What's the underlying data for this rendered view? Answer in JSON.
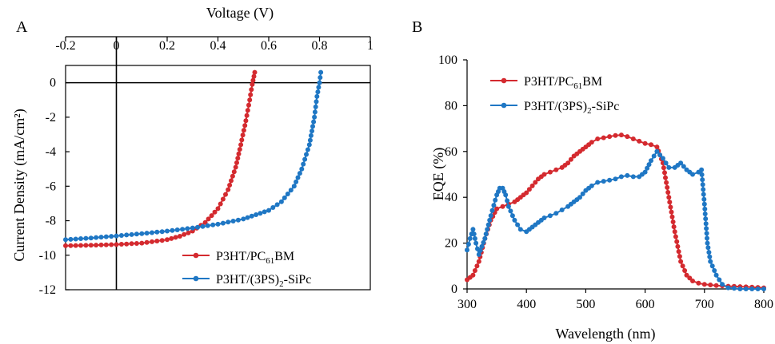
{
  "chart_data": [
    {
      "panel": "A",
      "type": "line",
      "title": "",
      "xlabel": "Voltage (V)",
      "ylabel": "Current Density (mA/cm²)",
      "xlim": [
        -0.2,
        1.0
      ],
      "ylim": [
        -12,
        1
      ],
      "xticks": [
        "-0.2",
        "0",
        "0.2",
        "0.4",
        "0.6",
        "0.8",
        "1"
      ],
      "yticks": [
        "0",
        "-2",
        "-4",
        "-6",
        "-8",
        "-10",
        "-12"
      ],
      "x_axis_position": "top",
      "legend_position": "bottom-right",
      "series": [
        {
          "name": "P3HT/PC61BM",
          "legend_main": "P3HT/PC",
          "legend_sub": "61",
          "legend_tail": "BM",
          "color": "#d42a2f",
          "points": [
            [
              -0.2,
              -9.45
            ],
            [
              -0.1,
              -9.42
            ],
            [
              0.0,
              -9.38
            ],
            [
              0.1,
              -9.3
            ],
            [
              0.2,
              -9.1
            ],
            [
              0.25,
              -8.9
            ],
            [
              0.3,
              -8.6
            ],
            [
              0.35,
              -8.1
            ],
            [
              0.4,
              -7.3
            ],
            [
              0.44,
              -6.2
            ],
            [
              0.47,
              -4.9
            ],
            [
              0.49,
              -3.6
            ],
            [
              0.51,
              -2.2
            ],
            [
              0.525,
              -1.0
            ],
            [
              0.535,
              -0.1
            ],
            [
              0.545,
              0.6
            ]
          ]
        },
        {
          "name": "P3HT/(3PS)2-SiPc",
          "legend_main": "P3HT/(3PS)",
          "legend_sub": "2",
          "legend_tail": "-SiPc",
          "color": "#1f77c4",
          "points": [
            [
              -0.2,
              -9.1
            ],
            [
              -0.1,
              -9.0
            ],
            [
              0.0,
              -8.88
            ],
            [
              0.1,
              -8.75
            ],
            [
              0.2,
              -8.6
            ],
            [
              0.3,
              -8.42
            ],
            [
              0.4,
              -8.2
            ],
            [
              0.5,
              -7.9
            ],
            [
              0.6,
              -7.4
            ],
            [
              0.65,
              -6.9
            ],
            [
              0.7,
              -6.0
            ],
            [
              0.73,
              -5.0
            ],
            [
              0.76,
              -3.6
            ],
            [
              0.78,
              -2.0
            ],
            [
              0.79,
              -0.8
            ],
            [
              0.8,
              0.0
            ],
            [
              0.805,
              0.6
            ]
          ]
        }
      ]
    },
    {
      "panel": "B",
      "type": "line",
      "title": "",
      "xlabel": "Wavelength (nm)",
      "ylabel": "EQE (%)",
      "xlim": [
        300,
        800
      ],
      "ylim": [
        0,
        100
      ],
      "xticks": [
        "300",
        "400",
        "500",
        "600",
        "700",
        "800"
      ],
      "yticks": [
        "0",
        "20",
        "40",
        "60",
        "80",
        "100"
      ],
      "legend_position": "top-left",
      "series": [
        {
          "name": "P3HT/PC61BM",
          "legend_main": "P3HT/PC",
          "legend_sub": "61",
          "legend_tail": "BM",
          "color": "#d42a2f",
          "points": [
            [
              300,
              4
            ],
            [
              310,
              6
            ],
            [
              320,
              12
            ],
            [
              330,
              22
            ],
            [
              340,
              30
            ],
            [
              350,
              35
            ],
            [
              360,
              36
            ],
            [
              370,
              37
            ],
            [
              380,
              38
            ],
            [
              390,
              40
            ],
            [
              400,
              42
            ],
            [
              410,
              45
            ],
            [
              420,
              48
            ],
            [
              430,
              50
            ],
            [
              440,
              51
            ],
            [
              450,
              52
            ],
            [
              460,
              53
            ],
            [
              470,
              55
            ],
            [
              480,
              58
            ],
            [
              490,
              60
            ],
            [
              500,
              62
            ],
            [
              510,
              64
            ],
            [
              520,
              65.5
            ],
            [
              530,
              66
            ],
            [
              540,
              66.5
            ],
            [
              550,
              67
            ],
            [
              560,
              67.2
            ],
            [
              570,
              66.5
            ],
            [
              580,
              65.5
            ],
            [
              590,
              64.5
            ],
            [
              600,
              63.5
            ],
            [
              610,
              63
            ],
            [
              620,
              62
            ],
            [
              630,
              55
            ],
            [
              640,
              40
            ],
            [
              650,
              25
            ],
            [
              660,
              12
            ],
            [
              670,
              6
            ],
            [
              680,
              3.5
            ],
            [
              690,
              2.5
            ],
            [
              700,
              2
            ],
            [
              720,
              1.5
            ],
            [
              740,
              1.2
            ],
            [
              760,
              1
            ],
            [
              780,
              0.8
            ],
            [
              800,
              0.5
            ]
          ]
        },
        {
          "name": "P3HT/(3PS)2-SiPc",
          "legend_main": "P3HT/(3PS)",
          "legend_sub": "2",
          "legend_tail": "-SiPc",
          "color": "#1f77c4",
          "points": [
            [
              300,
              17
            ],
            [
              305,
              22
            ],
            [
              310,
              26
            ],
            [
              315,
              20
            ],
            [
              320,
              15
            ],
            [
              330,
              22
            ],
            [
              340,
              32
            ],
            [
              350,
              41
            ],
            [
              355,
              44
            ],
            [
              360,
              44
            ],
            [
              365,
              41
            ],
            [
              370,
              36
            ],
            [
              380,
              30
            ],
            [
              390,
              26
            ],
            [
              400,
              25
            ],
            [
              410,
              27
            ],
            [
              420,
              29
            ],
            [
              430,
              31
            ],
            [
              440,
              32
            ],
            [
              450,
              33
            ],
            [
              460,
              34.5
            ],
            [
              470,
              36
            ],
            [
              480,
              38
            ],
            [
              490,
              40
            ],
            [
              500,
              43
            ],
            [
              510,
              45
            ],
            [
              520,
              46.5
            ],
            [
              530,
              47
            ],
            [
              540,
              47.5
            ],
            [
              550,
              48
            ],
            [
              560,
              49
            ],
            [
              570,
              49.5
            ],
            [
              580,
              49
            ],
            [
              590,
              49
            ],
            [
              600,
              51
            ],
            [
              610,
              56
            ],
            [
              620,
              60
            ],
            [
              630,
              57
            ],
            [
              640,
              53
            ],
            [
              650,
              53
            ],
            [
              660,
              55
            ],
            [
              670,
              52
            ],
            [
              680,
              50
            ],
            [
              690,
              51
            ],
            [
              695,
              52
            ],
            [
              700,
              37
            ],
            [
              705,
              20
            ],
            [
              710,
              12
            ],
            [
              720,
              6
            ],
            [
              730,
              2
            ],
            [
              740,
              0.5
            ],
            [
              760,
              0
            ],
            [
              780,
              0
            ],
            [
              800,
              0
            ]
          ]
        }
      ]
    }
  ]
}
